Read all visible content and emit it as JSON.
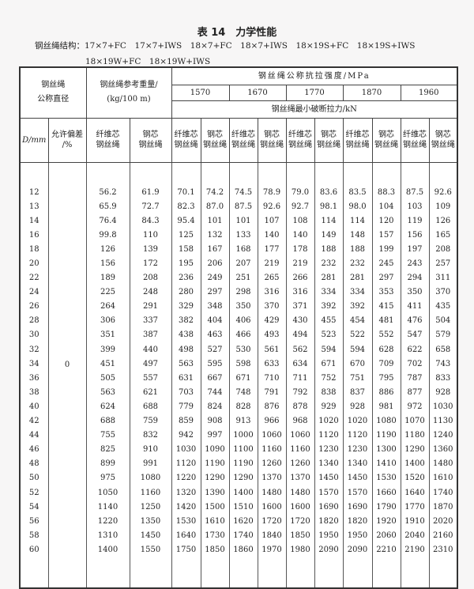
{
  "title": "表 14　力学性能",
  "structure_line1": "钢丝绳结构：17×7+FC　17×7+IWS　18×7+FC　18×7+IWS　18×19S+FC　18×19S+IWS",
  "structure_line2": "18×19W+FC　18×19W+IWS",
  "header": {
    "diameter_group": "钢丝绳\n公称直径",
    "weight_group": "钢丝绳参考重量/\n(kg/100 m)",
    "strength_group": "钢丝绳公称抗拉强度/MPa",
    "grades": [
      "1570",
      "1670",
      "1770",
      "1870",
      "1960"
    ],
    "breaking_force": "钢丝绳最小破断拉力/kN",
    "d_mm": "D/mm",
    "tolerance": "允许偏差\n/%",
    "fiber_core": "纤维芯\n钢丝绳",
    "steel_core": "钢芯\n钢丝绳"
  },
  "tolerance_value": "+5\n0",
  "rows": [
    [
      "12",
      "56.2",
      "61.9",
      "70.1",
      "74.2",
      "74.5",
      "78.9",
      "79.0",
      "83.6",
      "83.5",
      "88.3",
      "87.5",
      "92.6"
    ],
    [
      "13",
      "65.9",
      "72.7",
      "82.3",
      "87.0",
      "87.5",
      "92.6",
      "92.7",
      "98.1",
      "98.0",
      "104",
      "103",
      "109"
    ],
    [
      "14",
      "76.4",
      "84.3",
      "95.4",
      "101",
      "101",
      "107",
      "108",
      "114",
      "114",
      "120",
      "119",
      "126"
    ],
    [
      "16",
      "99.8",
      "110",
      "125",
      "132",
      "133",
      "140",
      "140",
      "149",
      "148",
      "157",
      "156",
      "165"
    ],
    [
      "18",
      "126",
      "139",
      "158",
      "167",
      "168",
      "177",
      "178",
      "188",
      "188",
      "199",
      "197",
      "208"
    ],
    [
      "20",
      "156",
      "172",
      "195",
      "206",
      "207",
      "219",
      "219",
      "232",
      "232",
      "245",
      "243",
      "257"
    ],
    [
      "22",
      "189",
      "208",
      "236",
      "249",
      "251",
      "265",
      "266",
      "281",
      "281",
      "297",
      "294",
      "311"
    ],
    [
      "24",
      "225",
      "248",
      "280",
      "297",
      "298",
      "316",
      "316",
      "334",
      "334",
      "353",
      "350",
      "370"
    ],
    [
      "26",
      "264",
      "291",
      "329",
      "348",
      "350",
      "370",
      "371",
      "392",
      "392",
      "415",
      "411",
      "435"
    ],
    [
      "28",
      "306",
      "337",
      "382",
      "404",
      "406",
      "429",
      "430",
      "455",
      "454",
      "481",
      "476",
      "504"
    ],
    [
      "30",
      "351",
      "387",
      "438",
      "463",
      "466",
      "493",
      "494",
      "523",
      "522",
      "552",
      "547",
      "579"
    ],
    [
      "32",
      "399",
      "440",
      "498",
      "527",
      "530",
      "561",
      "562",
      "594",
      "594",
      "628",
      "622",
      "658"
    ],
    [
      "34",
      "451",
      "497",
      "563",
      "595",
      "598",
      "633",
      "634",
      "671",
      "670",
      "709",
      "702",
      "743"
    ],
    [
      "36",
      "505",
      "557",
      "631",
      "667",
      "671",
      "710",
      "711",
      "752",
      "751",
      "795",
      "787",
      "833"
    ],
    [
      "38",
      "563",
      "621",
      "703",
      "744",
      "748",
      "791",
      "792",
      "838",
      "837",
      "886",
      "877",
      "928"
    ],
    [
      "40",
      "624",
      "688",
      "779",
      "824",
      "828",
      "876",
      "878",
      "929",
      "928",
      "981",
      "972",
      "1030"
    ],
    [
      "42",
      "688",
      "759",
      "859",
      "908",
      "913",
      "966",
      "968",
      "1020",
      "1020",
      "1080",
      "1070",
      "1130"
    ],
    [
      "44",
      "755",
      "832",
      "942",
      "997",
      "1000",
      "1060",
      "1060",
      "1120",
      "1120",
      "1190",
      "1180",
      "1240"
    ],
    [
      "46",
      "825",
      "910",
      "1030",
      "1090",
      "1100",
      "1160",
      "1160",
      "1230",
      "1230",
      "1300",
      "1290",
      "1360"
    ],
    [
      "48",
      "899",
      "991",
      "1120",
      "1190",
      "1190",
      "1260",
      "1260",
      "1340",
      "1340",
      "1410",
      "1400",
      "1480"
    ],
    [
      "50",
      "975",
      "1080",
      "1220",
      "1290",
      "1290",
      "1370",
      "1370",
      "1450",
      "1450",
      "1530",
      "1520",
      "1610"
    ],
    [
      "52",
      "1050",
      "1160",
      "1320",
      "1390",
      "1400",
      "1480",
      "1480",
      "1570",
      "1570",
      "1660",
      "1640",
      "1740"
    ],
    [
      "54",
      "1140",
      "1250",
      "1420",
      "1500",
      "1510",
      "1600",
      "1600",
      "1690",
      "1690",
      "1790",
      "1770",
      "1870"
    ],
    [
      "56",
      "1220",
      "1350",
      "1530",
      "1610",
      "1620",
      "1720",
      "1720",
      "1820",
      "1820",
      "1920",
      "1910",
      "2020"
    ],
    [
      "58",
      "1310",
      "1450",
      "1640",
      "1730",
      "1740",
      "1840",
      "1850",
      "1950",
      "1950",
      "2060",
      "2040",
      "2160"
    ],
    [
      "60",
      "1400",
      "1550",
      "1750",
      "1850",
      "1860",
      "1970",
      "1980",
      "2090",
      "2090",
      "2210",
      "2190",
      "2310"
    ]
  ]
}
